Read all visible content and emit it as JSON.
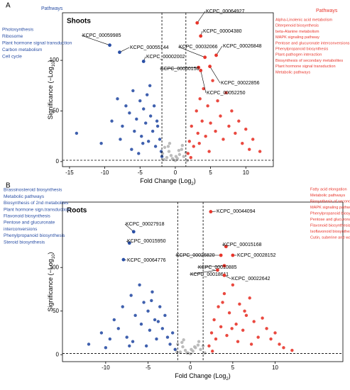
{
  "chart_data": [
    {
      "type": "scatter",
      "panel_label": "A",
      "title": "Shoots",
      "x_label": [
        "Fold Change (Log",
        "2",
        ")"
      ],
      "y_label": [
        "Significance (−Log",
        "10",
        ")"
      ],
      "xlim": [
        -16,
        13.9
      ],
      "ylim": [
        -5,
        147
      ],
      "xticks": [
        -15,
        -10,
        -5,
        0,
        5,
        10
      ],
      "yticks": [
        0,
        50,
        100
      ],
      "vlines": [
        -1.9,
        1.5
      ],
      "hline": 1.3,
      "series": [
        {
          "color": "#b5b5b5",
          "x": [
            -1.8,
            -1.5,
            -1.2,
            -0.9,
            -0.6,
            -0.3,
            0,
            0.3,
            0.6,
            0.9,
            1.2,
            1.5,
            -1,
            0.5,
            -0.4,
            1,
            -1.6,
            1.7,
            0.1,
            -0.8
          ],
          "values": [
            8,
            14,
            4,
            10,
            6,
            2,
            1,
            3,
            7,
            12,
            5,
            9,
            15,
            11,
            3,
            16,
            2,
            1,
            5,
            18
          ]
        },
        {
          "color": "#2a4fa5",
          "x": [
            -14,
            -10.5,
            -9,
            -8.2,
            -7.5,
            -7,
            -6.5,
            -6,
            -5.8,
            -5.5,
            -5,
            -4.8,
            -4.5,
            -4.2,
            -4,
            -3.8,
            -3.5,
            -3.2,
            -3,
            -2.8,
            -2.5,
            -2.2,
            -2,
            -1.9,
            -6.2,
            -5.2,
            -3.6,
            -2.6,
            -4.6,
            -7.8
          ],
          "values": [
            28,
            18,
            40,
            62,
            35,
            55,
            48,
            70,
            30,
            42,
            60,
            25,
            52,
            38,
            66,
            20,
            45,
            30,
            55,
            15,
            35,
            22,
            10,
            5,
            12,
            8,
            75,
            40,
            18,
            22
          ]
        },
        {
          "color": "#e8352b",
          "x": [
            1.8,
            2,
            2.3,
            2.6,
            3,
            3.2,
            3.5,
            3.8,
            4,
            4.3,
            4.6,
            5,
            5.3,
            5.7,
            6,
            6.4,
            6.8,
            7.2,
            7.6,
            8,
            8.5,
            9,
            9.5,
            10,
            10.5,
            11,
            12,
            2.2,
            3.4,
            4.8
          ],
          "values": [
            8,
            20,
            35,
            15,
            50,
            28,
            62,
            40,
            72,
            25,
            55,
            38,
            80,
            30,
            60,
            45,
            22,
            68,
            35,
            50,
            28,
            40,
            18,
            32,
            12,
            22,
            10,
            4,
            18,
            10
          ]
        }
      ],
      "annotations": [
        {
          "label": "KCPC_00064927",
          "x": 3.1,
          "y": 137,
          "color": "#e8352b"
        },
        {
          "label": "KCPC_00004380",
          "x": 3.6,
          "y": 124,
          "color": "#e8352b"
        },
        {
          "label": "KCPC_00059985",
          "x": -9.3,
          "y": 115,
          "color": "#2a4fa5"
        },
        {
          "label": "KCPC_00055144",
          "x": -7.9,
          "y": 108,
          "color": "#2a4fa5"
        },
        {
          "label": "KCPC_00032066",
          "x": 4.2,
          "y": 103,
          "color": "#e8352b"
        },
        {
          "label": "KCPC_00026848",
          "x": 5.8,
          "y": 105,
          "color": "#e8352b"
        },
        {
          "label": "KCPC_00002002",
          "x": -4.5,
          "y": 99,
          "color": "#2a4fa5"
        },
        {
          "label": "KCPC_00060150",
          "x": 3.3,
          "y": 93,
          "color": "#e8352b"
        },
        {
          "label": "KCPC_00022856",
          "x": 4.9,
          "y": 94,
          "color": "#e8352b"
        },
        {
          "label": "KCPC_00052250",
          "x": 3.6,
          "y": 90,
          "color": "#e8352b"
        }
      ],
      "left_title": "Pathways",
      "left_pathways": [
        "Photosynthesis",
        "Ribosome",
        "Plant hormone signal transduction",
        "Carbon metabolism",
        "Cell cycle"
      ],
      "right_title": "Pathways",
      "right_pathways": [
        "Alpha-Linolenic acid metabolism",
        "Diterpenoid biosynthesis",
        "beta-Alanine metabolism",
        "MAPK signaling pathway",
        "Pentose and glucuronate interconversions",
        "Phenylpropanoid biosynthesis",
        "Plant-pathogen interaction",
        "Biosynthesis of secondary metabolites",
        "Plant hormone signal transduction",
        "Metabolic pathways"
      ]
    },
    {
      "type": "scatter",
      "panel_label": "B",
      "title": "Roots",
      "x_label": [
        "Fold Change (Log",
        "2",
        ")"
      ],
      "y_label": [
        "Significance (−Log",
        "10",
        ")"
      ],
      "xlim": [
        -15.1,
        18
      ],
      "ylim": [
        -8,
        175
      ],
      "xticks": [
        -10,
        -5,
        0,
        5,
        10
      ],
      "yticks": [
        0,
        50,
        100
      ],
      "vlines": [
        -1.5,
        1.5
      ],
      "hline": 1.3,
      "series": [
        {
          "color": "#b5b5b5",
          "x": [
            -1.8,
            -1.5,
            -1.2,
            -0.9,
            -0.6,
            -0.3,
            0,
            0.3,
            0.6,
            0.9,
            1.2,
            1.5,
            -1,
            0.5,
            -0.4,
            1,
            -1.6,
            1.7,
            0.1,
            -0.8
          ],
          "values": [
            6,
            12,
            3,
            9,
            5,
            2,
            1,
            4,
            8,
            11,
            6,
            10,
            14,
            9,
            2,
            15,
            3,
            2,
            6,
            17
          ]
        },
        {
          "color": "#2a4fa5",
          "x": [
            -12,
            -10.5,
            -10,
            -9,
            -8.5,
            -8,
            -7.5,
            -7,
            -6.5,
            -6,
            -5.8,
            -5.5,
            -5,
            -4.8,
            -4.5,
            -4.2,
            -4,
            -3.6,
            -3.3,
            -3,
            -2.7,
            -2.4,
            -2.1,
            -1.8,
            -6.8,
            -5.2,
            -3.8,
            -4.6,
            -9.5,
            -7.2
          ],
          "values": [
            12,
            25,
            8,
            40,
            30,
            55,
            20,
            68,
            45,
            80,
            35,
            60,
            50,
            28,
            72,
            40,
            18,
            55,
            30,
            45,
            20,
            12,
            25,
            6,
            15,
            10,
            38,
            62,
            18,
            10
          ]
        },
        {
          "color": "#e8352b",
          "x": [
            2.2,
            2.5,
            2.8,
            3,
            3.3,
            3.6,
            4,
            4.3,
            4.6,
            5,
            5.4,
            5.8,
            6.2,
            6.6,
            7,
            7.5,
            8,
            8.5,
            9,
            9.5,
            10,
            10.5,
            11,
            12,
            3.8,
            5.6,
            7.2,
            2.6,
            4.9,
            6.4
          ],
          "values": [
            10,
            25,
            40,
            18,
            55,
            32,
            70,
            22,
            48,
            80,
            35,
            58,
            28,
            45,
            65,
            38,
            20,
            42,
            30,
            18,
            25,
            12,
            8,
            5,
            60,
            15,
            12,
            4,
            30,
            50
          ]
        }
      ],
      "annotations": [
        {
          "label": "KCPC_00044094",
          "x": 2.4,
          "y": 164,
          "color": "#e8352b"
        },
        {
          "label": "KCPC_00027918",
          "x": -6.7,
          "y": 141,
          "color": "#2a4fa5"
        },
        {
          "label": "KCPC_00015950",
          "x": -7.2,
          "y": 128,
          "color": "#2a4fa5"
        },
        {
          "label": "KCPC_00015168",
          "x": 4.2,
          "y": 124,
          "color": "#e8352b"
        },
        {
          "label": "KCPC_00026820",
          "x": 3.6,
          "y": 114,
          "color": "#e8352b"
        },
        {
          "label": "KCPC_00028152",
          "x": 5.0,
          "y": 114,
          "color": "#e8352b"
        },
        {
          "label": "KCPC_00010885",
          "x": 4.0,
          "y": 102,
          "color": "#e8352b"
        },
        {
          "label": "KCPC_00018611",
          "x": 3.2,
          "y": 97,
          "color": "#e8352b"
        },
        {
          "label": "KCPC_00022642",
          "x": 4.0,
          "y": 91,
          "color": "#e8352b"
        },
        {
          "label": "KCPC_00064776",
          "x": -7.9,
          "y": 109,
          "color": "#2a4fa5"
        }
      ],
      "left_pathways": [
        "Brassinosteroid biosynthesis",
        "Metabolic pathways",
        "Biosynthesis of 2nd metabolites",
        "Plant hormone sign.transduction",
        "Flavonoid biosynthesis",
        "Pentose and glucuronate",
        "interconversions",
        "Phenylpropanoid biosynthesis",
        "Steroid biosynthesis"
      ],
      "right_pathways": [
        "Fatty acid elongation",
        "Metabolic pathways",
        "Biosynthesis of secondary metabolites",
        "MAPK signaling pathway",
        "Phenylpropanoid biosynthesis",
        "Pentose and glucuronate interconversions",
        "Flavonoid biosynthesis",
        "Isoflavonoid biosynthesis",
        "Cutin, suberine and wax biosynthesis"
      ]
    }
  ]
}
